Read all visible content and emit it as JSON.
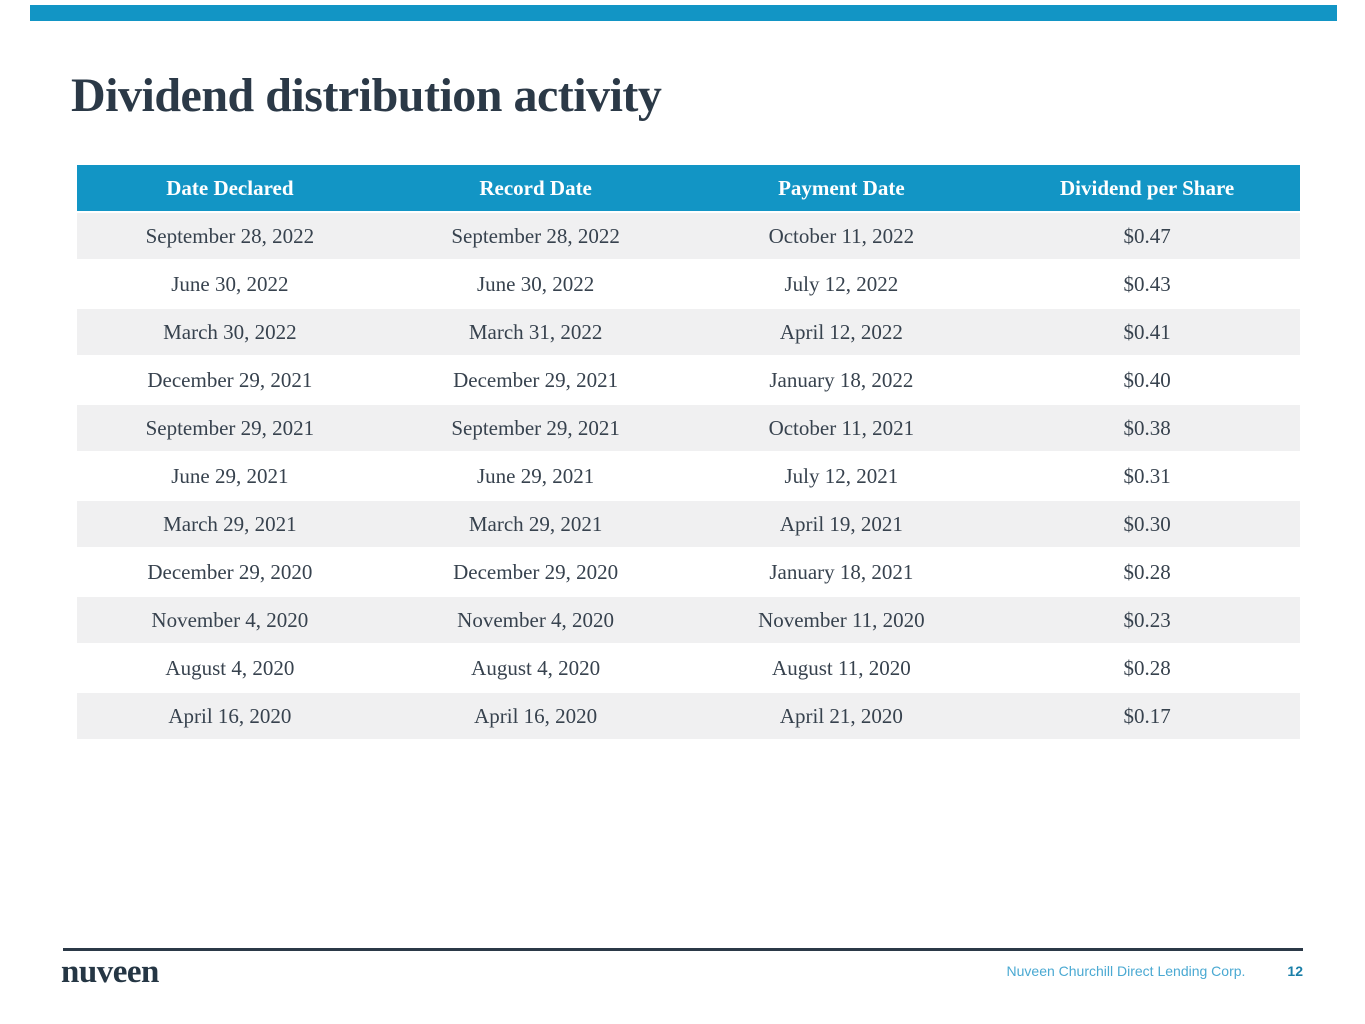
{
  "slide": {
    "title": "Dividend distribution activity"
  },
  "colors": {
    "accent": "#1295c5",
    "title_text": "#2b3947",
    "body_text": "#37424e",
    "row_stripe": "#f0f0f1",
    "footer_company": "#4aa9d2",
    "footer_page": "#1a7fa8"
  },
  "table": {
    "headers": [
      "Date Declared",
      "Record Date",
      "Payment Date",
      "Dividend per Share"
    ],
    "rows": [
      [
        "September 28, 2022",
        "September 28, 2022",
        "October 11, 2022",
        "$0.47"
      ],
      [
        "June 30, 2022",
        "June 30, 2022",
        "July 12, 2022",
        "$0.43"
      ],
      [
        "March 30, 2022",
        "March 31, 2022",
        "April 12, 2022",
        "$0.41"
      ],
      [
        "December 29, 2021",
        "December 29, 2021",
        "January 18, 2022",
        "$0.40"
      ],
      [
        "September 29, 2021",
        "September 29, 2021",
        "October 11, 2021",
        "$0.38"
      ],
      [
        "June 29, 2021",
        "June 29, 2021",
        "July 12, 2021",
        "$0.31"
      ],
      [
        "March 29, 2021",
        "March 29, 2021",
        "April 19, 2021",
        "$0.30"
      ],
      [
        "December 29, 2020",
        "December 29, 2020",
        "January 18, 2021",
        "$0.28"
      ],
      [
        "November 4, 2020",
        "November 4, 2020",
        "November 11, 2020",
        "$0.23"
      ],
      [
        "August 4, 2020",
        "August 4, 2020",
        "August 11, 2020",
        "$0.28"
      ],
      [
        "April 16, 2020",
        "April 16, 2020",
        "April 21, 2020",
        "$0.17"
      ]
    ]
  },
  "footer": {
    "logo_text": "nuveen",
    "company_label": "Nuveen Churchill Direct Lending Corp.",
    "page_number": "12"
  }
}
